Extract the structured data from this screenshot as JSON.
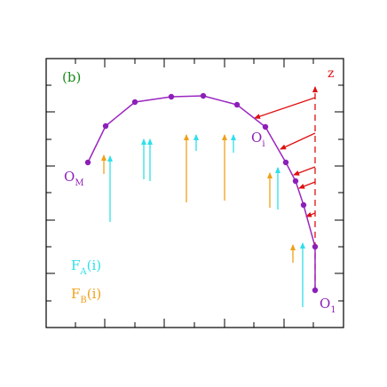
{
  "panel_label": "(b)",
  "z_label": "z",
  "point_labels": {
    "om_main": "O",
    "om_sub": "M",
    "oi_main": "O",
    "oi_sub": "i",
    "o1_main": "O",
    "o1_sub": "1"
  },
  "legend": {
    "fa_main": "F",
    "fa_sub": "A",
    "fa_arg": "(i)",
    "fb_main": "F",
    "fb_sub": "B",
    "fb_arg": "(i)"
  },
  "colors": {
    "chain": "#9b27c0",
    "node": "#8c1fb8",
    "frame": "#000000",
    "z_axis": "#e01010",
    "arrow_red": "#e01010",
    "force_a": "#2ee0e8",
    "force_b": "#f0a018",
    "panel_label": "#1a8a1a"
  },
  "icons": [
    "frame-arrow-icon",
    "force-arrow-icon"
  ]
}
